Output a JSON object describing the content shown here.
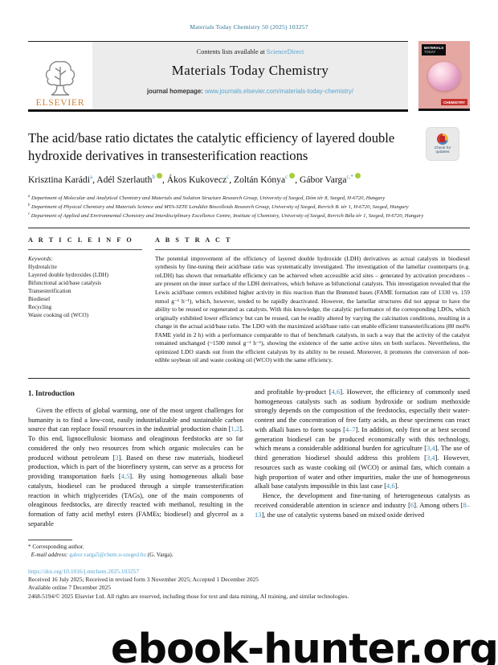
{
  "colors": {
    "link_blue": "#56a4cf",
    "citation_teal": "#3a8cb5",
    "header_ref_blue": "#2d7291",
    "banner_grey": "#ececec",
    "elsevier_orange": "#cf7f2e",
    "orcid_green": "#a6ce39",
    "cover_pink": "#e5a7a2",
    "cover_badge_red": "#c5302c"
  },
  "page": {
    "citation_line": "Materials Today Chemistry 50 (2025) 103257"
  },
  "header": {
    "contents_text": "Contents lists available at",
    "sciencedirect_link": "ScienceDirect",
    "journal_title": "Materials Today Chemistry",
    "homepage_label": "journal homepage:",
    "homepage_url": "www.journals.elsevier.com/materials-today-chemistry/",
    "elsevier_text": "ELSEVIER",
    "cover": {
      "brand_line1": "MATERIALS",
      "brand_line2": "TODAY",
      "badge": "CHEMISTRY"
    },
    "check_updates": "Check for updates"
  },
  "article": {
    "title": "The acid/base ratio dictates the catalytic efficiency of layered double hydroxide derivatives in transesterification reactions",
    "authors": [
      {
        "name": "Krisztina Karádi",
        "sup": "a",
        "orcid": false
      },
      {
        "name": "Adél Szerlauth",
        "sup": "b",
        "orcid": true
      },
      {
        "name": "Ákos Kukovecz",
        "sup": "c",
        "orcid": false
      },
      {
        "name": "Zoltán Kónya",
        "sup": "c",
        "orcid": true
      },
      {
        "name": "Gábor Varga",
        "sup": "c,*",
        "orcid": true
      }
    ],
    "affiliations": [
      {
        "sup": "a",
        "text": "Department of Molecular and Analytical Chemistry and Materials and Solution Structure Research Group, University of Szeged, Dóm tér 8, Szeged, H-6720, Hungary"
      },
      {
        "sup": "b",
        "text": "Department of Physical Chemistry and Materials Science and MTA-SZTE Lendület Biocolloids Research Group, University of Szeged, Rerrich B. tér 1, H-6720, Szeged, Hungary"
      },
      {
        "sup": "c",
        "text": "Department of Applied and Environmental Chemistry and Interdisciplinary Excellence Centre, Institute of Chemistry, University of Szeged, Rerrich Béla tér 1, Szeged, H-6720, Hungary"
      }
    ]
  },
  "article_info": {
    "heading": "A R T I C L E  I N F O",
    "keywords_label": "Keywords:",
    "keywords": [
      "Hydrotalcite",
      "Layered double hydroxides (LDH)",
      "Bifunctional acid/base catalysis",
      "Transesterification",
      "Biodiesel",
      "Recycling",
      "Waste cooking oil (WCO)"
    ]
  },
  "abstract": {
    "heading": "A B S T R A C T",
    "text": "The potential improvement of the efficiency of layered double hydroxide (LDH) derivatives as actual catalysts in biodiesel synthesis by fine-tuning their acid/base ratio was systematically investigated. The investigation of the lamellar counterparts (e.g. reLDH) has shown that remarkable efficiency can be achieved when accessible acid sites – generated by activation procedures – are present on the inner surface of the LDH derivatives, which behave as bifunctional catalysts. This investigation revealed that the Lewis acid/base centers exhibited higher activity in this reaction than the Brønsted bases (FAME formation rate of 1330 vs. 159 mmol g⁻¹ h⁻¹), which, however, tended to be rapidly deactivated. However, the lamellar structures did not appear to have the ability to be reused or regenerated as catalysts. With this knowledge, the catalytic performance of the corresponding LDOs, which originally exhibited lower efficiency but can be reused, can be readily altered by varying the calcination conditions, resulting in a change in the actual acid/base ratio. The LDO with the maximized acid/base ratio can enable efficient transesterifications (80 mol% FAME yield in 2 h) with a performance comparable to that of benchmark catalysts, in such a way that the activity of the catalyst remained unchanged (~1500 mmol g⁻¹ h⁻¹), showing the existence of the same active sites on both surfaces. Nevertheless, the optimized LDO stands out from the efficient catalysts by its ability to be reused. Moreover, it promotes the conversion of non-edible soybean oil and waste cooking oil (WCO) with the same efficiency."
  },
  "intro": {
    "heading": "1. Introduction",
    "p1_left": "Given the effects of global warming, one of the most urgent challenges for humanity is to find a low-cost, easily industrializable and sustainable carbon source that can replace fossil resources in the industrial production chain [1,2]. To this end, lignocellulosic biomass and oleaginous feedstocks are so far considered the only two resources from which organic molecules can be produced without petroleum [3]. Based on these raw materials, biodiesel production, which is part of the biorefinery system, can serve as a process for providing transportation fuels [4,5]. By using homogeneous alkali base catalysts, biodiesel can be produced through a simple transesterification reaction in which triglycerides (TAGs), one of the main components of oleaginous feedstocks, are directly reacted with methanol, resulting in the formation of fatty acid methyl esters (FAMEs; biodiesel) and glycerol as a separable",
    "p1_right": "and profitable by-product [4,6]. However, the efficiency of commonly used homogeneous catalysts such as sodium hydroxide or sodium methoxide strongly depends on the composition of the feedstocks, especially their water-content and the concentration of free fatty acids, as these specimens can react with alkali bases to form soaps [4–7]. In addition, only first or at best second generation biodiesel can be produced economically with this technology, which means a considerable additional burden for agriculture [3,4]. The use of third generation biodiesel should address this problem [3,4]. However, resources such as waste cooking oil (WCO) or animal fats, which contain a high proportion of water and other impurities, make the use of homogeneous alkali base catalysts impossible in this last case [4,6].",
    "p2_right": "Hence, the development and fine-tuning of heterogeneous catalysts as received considerable attention in science and industry [6]. Among others [8–13], the use of catalytic systems based on mixed oxide derived"
  },
  "footnote": {
    "corresponding": "* Corresponding author.",
    "email_label": "E-mail address:",
    "email": "gabor.varga5@chem.u-szeged.hu",
    "email_suffix": "(G. Varga)."
  },
  "footer": {
    "doi": "https://doi.org/10.1016/j.mtchem.2025.103257",
    "received": "Received 16 July 2025; Received in revised form 3 November 2025; Accepted 1 December 2025",
    "available_online": "Available online 7 December 2025",
    "copyright": "2468-5194/© 2025 Elsevier Ltd. All rights are reserved, including those for text and data mining, AI training, and similar technologies."
  },
  "watermark": {
    "text": "ebook-hunter.org"
  }
}
